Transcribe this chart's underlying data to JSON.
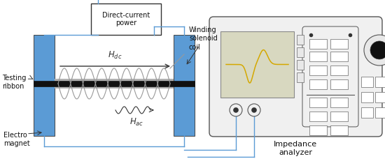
{
  "bg_color": "#ffffff",
  "magnet_color": "#5b9bd5",
  "wire_color": "#5b9bd5",
  "screen_bg": "#deded0",
  "signal_color": "#d4a800",
  "analyzer_bg": "#f2f2f2",
  "analyzer_border": "#555555",
  "labels": {
    "testing_ribbon": "Testing\nribbon",
    "electro_magnet": "Electro\nmagnet",
    "H_dc": "$\\mathbf{\\it{H}}_{dc}$",
    "H_ac": "$\\mathbf{\\it{H}}_{ac}$",
    "winding": "Winding\nsolenoid\ncoil",
    "dc_power": "Direct-current\npower",
    "impedance": "Impedance\nanalyzer"
  }
}
